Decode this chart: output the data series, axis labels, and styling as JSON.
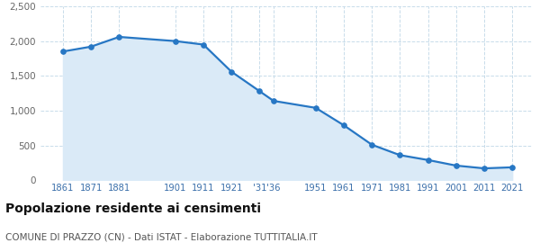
{
  "years": [
    1861,
    1871,
    1881,
    1901,
    1911,
    1921,
    1931,
    1936,
    1951,
    1961,
    1971,
    1981,
    1991,
    2001,
    2011,
    2021
  ],
  "population": [
    1850,
    1920,
    2060,
    2000,
    1950,
    1560,
    1280,
    1140,
    1040,
    790,
    510,
    360,
    290,
    210,
    170,
    185
  ],
  "tick_positions": [
    1861,
    1871,
    1881,
    1901,
    1911,
    1921,
    1931,
    1936,
    1951,
    1961,
    1971,
    1981,
    1991,
    2001,
    2011,
    2021
  ],
  "tick_labels": [
    "1861",
    "1871",
    "1881",
    "1901",
    "1911",
    "1921",
    "'31",
    "'36",
    "1951",
    "1961",
    "1971",
    "1981",
    "1991",
    "2001",
    "2011",
    "2021"
  ],
  "line_color": "#2777c4",
  "fill_color": "#daeaf7",
  "marker_color": "#2777c4",
  "bg_color": "#ffffff",
  "grid_color": "#c8dcea",
  "title": "Popolazione residente ai censimenti",
  "subtitle": "COMUNE DI PRAZZO (CN) - Dati ISTAT - Elaborazione TUTTITALIA.IT",
  "ylim": [
    0,
    2500
  ],
  "yticks": [
    0,
    500,
    1000,
    1500,
    2000,
    2500
  ],
  "title_fontsize": 10,
  "subtitle_fontsize": 7.5
}
